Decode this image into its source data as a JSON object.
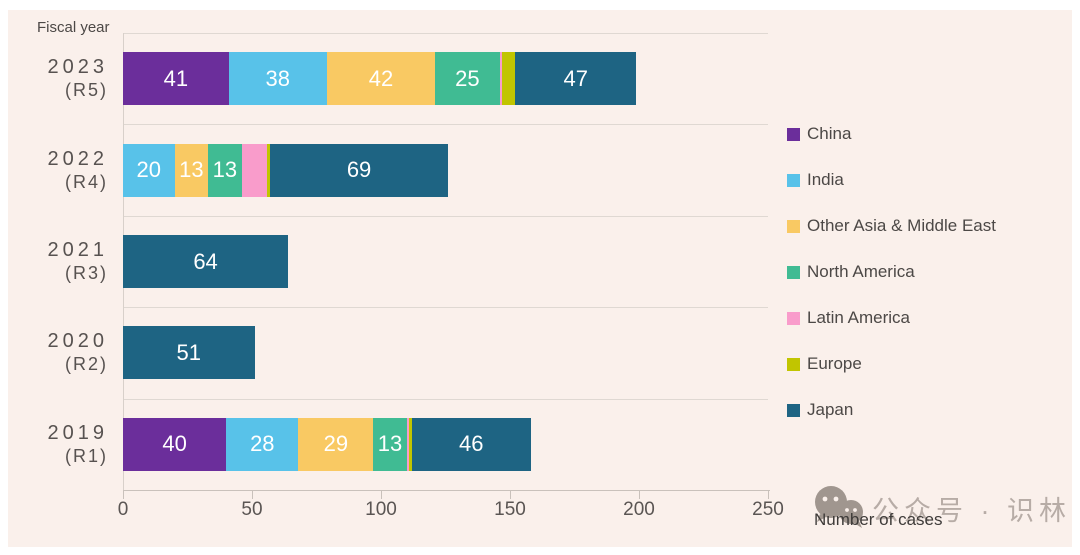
{
  "panel": {
    "background": "#FAF0EB"
  },
  "header": {
    "axis_group_label": "Fiscal year"
  },
  "xaxis": {
    "title": "Number of cases",
    "ticks": [
      "0",
      "50",
      "100",
      "150",
      "200",
      "250"
    ],
    "max": 250
  },
  "legend": {
    "items": [
      {
        "label": "China",
        "color": "#6B2E9B"
      },
      {
        "label": "India",
        "color": "#58C2E9"
      },
      {
        "label": "Other Asia & Middle East",
        "color": "#F9C963"
      },
      {
        "label": "North America",
        "color": "#40BB93"
      },
      {
        "label": "Latin America",
        "color": "#F99CCB"
      },
      {
        "label": "Europe",
        "color": "#C1C500"
      },
      {
        "label": "Japan",
        "color": "#1E6483"
      }
    ]
  },
  "watermark": {
    "icon": "wechat-icon",
    "text": "公众号 · 识林",
    "color": "#B7ACA6"
  },
  "chart_data": {
    "type": "bar",
    "orientation": "horizontal",
    "title": "Fiscal year",
    "xlabel": "Number of cases",
    "xlim": [
      0,
      250
    ],
    "grid": "row-separator-lines",
    "legend_position": "right",
    "value_label_min": 13,
    "categories": [
      "2023 (R5)",
      "2022 (R4)",
      "2021 (R3)",
      "2020 (R2)",
      "2019 (R1)"
    ],
    "category_lines": [
      [
        "2023",
        "(R5)"
      ],
      [
        "2022",
        "(R4)"
      ],
      [
        "2021",
        "(R3)"
      ],
      [
        "2020",
        "(R2)"
      ],
      [
        "2019",
        "(R1)"
      ]
    ],
    "series": [
      {
        "name": "China",
        "color": "#6B2E9B",
        "values": [
          41,
          0,
          0,
          0,
          40
        ]
      },
      {
        "name": "India",
        "color": "#58C2E9",
        "values": [
          38,
          20,
          0,
          0,
          28
        ]
      },
      {
        "name": "Other Asia & Middle East",
        "color": "#F9C963",
        "values": [
          42,
          13,
          0,
          0,
          29
        ]
      },
      {
        "name": "North America",
        "color": "#40BB93",
        "values": [
          25,
          13,
          0,
          0,
          13
        ]
      },
      {
        "name": "Latin America",
        "color": "#F99CCB",
        "values": [
          1,
          10,
          0,
          0,
          1
        ]
      },
      {
        "name": "Europe",
        "color": "#C1C500",
        "values": [
          5,
          1,
          0,
          0,
          1
        ]
      },
      {
        "name": "Japan",
        "color": "#1E6483",
        "values": [
          47,
          69,
          64,
          51,
          46
        ]
      }
    ],
    "totals": [
      199,
      126,
      64,
      51,
      158
    ]
  }
}
